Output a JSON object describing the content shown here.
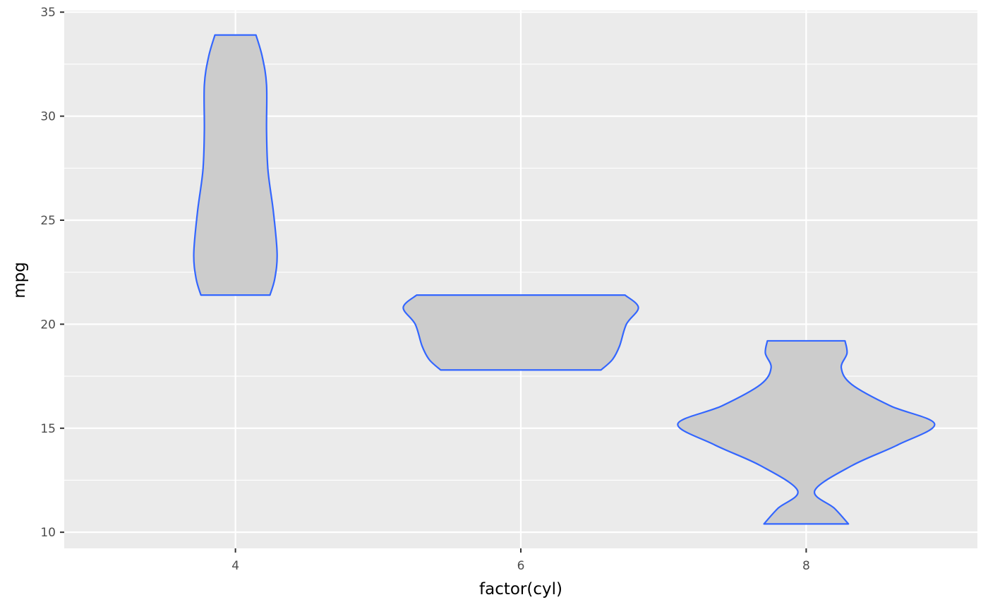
{
  "chart_data": {
    "type": "violin",
    "title": "",
    "xlabel": "factor(cyl)",
    "ylabel": "mpg",
    "categories": [
      "4",
      "6",
      "8"
    ],
    "ylim": [
      9.225,
      35.075
    ],
    "yticks": [
      10,
      15,
      20,
      25,
      30,
      35
    ],
    "grid": true,
    "colors": {
      "panel": "#EBEBEB",
      "grid": "#FFFFFF",
      "fill": "#CCCCCC",
      "outline": "#3366FF",
      "tick_label": "#4D4D4D",
      "axis_title": "#000000"
    },
    "violins": [
      {
        "category": "4",
        "min": 21.4,
        "max": 33.9,
        "profile": [
          [
            33.9,
            0.072
          ],
          [
            32.86,
            0.094
          ],
          [
            31.5,
            0.109
          ],
          [
            29.3,
            0.109
          ],
          [
            27.4,
            0.114
          ],
          [
            25.4,
            0.133
          ],
          [
            23.4,
            0.146
          ],
          [
            22.2,
            0.138
          ],
          [
            21.4,
            0.121
          ]
        ]
      },
      {
        "category": "6",
        "min": 17.8,
        "max": 21.4,
        "profile": [
          [
            21.4,
            0.365
          ],
          [
            20.8,
            0.412
          ],
          [
            20.0,
            0.37
          ],
          [
            18.95,
            0.346
          ],
          [
            18.3,
            0.321
          ],
          [
            17.8,
            0.281
          ]
        ]
      },
      {
        "category": "8",
        "min": 10.4,
        "max": 19.2,
        "profile": [
          [
            19.2,
            0.136
          ],
          [
            18.6,
            0.143
          ],
          [
            17.9,
            0.123
          ],
          [
            17.1,
            0.16
          ],
          [
            16.07,
            0.296
          ],
          [
            15.2,
            0.45
          ],
          [
            14.2,
            0.321
          ],
          [
            13.2,
            0.16
          ],
          [
            12.0,
            0.03
          ],
          [
            11.15,
            0.099
          ],
          [
            10.4,
            0.148
          ]
        ]
      }
    ]
  }
}
